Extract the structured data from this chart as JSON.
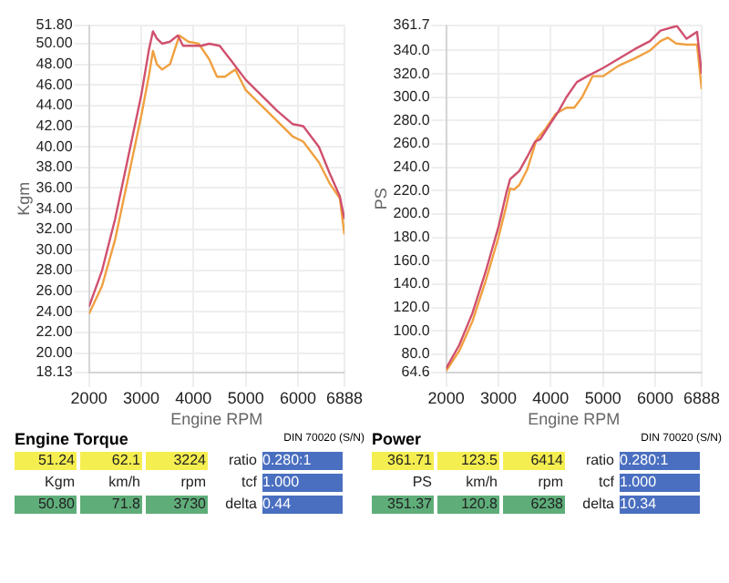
{
  "chart_data": [
    {
      "type": "line",
      "title": "Engine Torque",
      "xlabel": "Engine RPM",
      "ylabel": "Kgm",
      "xlim": [
        2000,
        6888
      ],
      "xticks": [
        2000,
        3000,
        4000,
        5000,
        6000,
        6888
      ],
      "ylim": [
        18.13,
        51.8
      ],
      "yticks": [
        {
          "value": 18.13,
          "label": "18.13"
        },
        {
          "value": 20,
          "label": "20.00"
        },
        {
          "value": 22,
          "label": "22.00"
        },
        {
          "value": 24,
          "label": "24.00"
        },
        {
          "value": 26,
          "label": "26.00"
        },
        {
          "value": 28,
          "label": "28.00"
        },
        {
          "value": 30,
          "label": "30.00"
        },
        {
          "value": 32,
          "label": "32.00"
        },
        {
          "value": 34,
          "label": "34.00"
        },
        {
          "value": 36,
          "label": "36.00"
        },
        {
          "value": 38,
          "label": "38.00"
        },
        {
          "value": 40,
          "label": "40.00"
        },
        {
          "value": 42,
          "label": "42.00"
        },
        {
          "value": 44,
          "label": "44.00"
        },
        {
          "value": 46,
          "label": "46.00"
        },
        {
          "value": 48,
          "label": "48.00"
        },
        {
          "value": 50,
          "label": "50.00"
        },
        {
          "value": 51.8,
          "label": "51.80"
        }
      ],
      "grid": true,
      "legend": false,
      "marker": "none",
      "line_style": "solid",
      "series": [
        {
          "color": "#d0506e",
          "x": [
            2000,
            2250,
            2500,
            2750,
            3000,
            3150,
            3224,
            3300,
            3400,
            3550,
            3700,
            3800,
            4000,
            4150,
            4300,
            4500,
            4700,
            5000,
            5300,
            5600,
            5900,
            6100,
            6400,
            6600,
            6800,
            6888
          ],
          "values": [
            24.5,
            28,
            33,
            39,
            45,
            49.5,
            51.2,
            50.5,
            50,
            50.2,
            50.8,
            49.8,
            49.8,
            49.8,
            50,
            49.8,
            48.5,
            46.5,
            45,
            43.5,
            42.2,
            42,
            40,
            37.5,
            35.2,
            33
          ]
        },
        {
          "color": "#f0a040",
          "x": [
            2000,
            2250,
            2500,
            2750,
            3000,
            3150,
            3224,
            3300,
            3400,
            3550,
            3730,
            3900,
            4100,
            4300,
            4450,
            4600,
            4800,
            5000,
            5300,
            5600,
            5900,
            6100,
            6400,
            6600,
            6800,
            6888
          ],
          "values": [
            23.8,
            26.5,
            31,
            37,
            43,
            47,
            49.3,
            48,
            47.5,
            48,
            50.8,
            50.2,
            50,
            48.5,
            46.8,
            46.8,
            47.5,
            45.5,
            44,
            42.5,
            41,
            40.5,
            38.5,
            36.5,
            35,
            31.5
          ]
        }
      ],
      "annotations": [
        "DIN 70020 (S/N)",
        "51.24",
        "62.1",
        "3224",
        "ratio",
        "0.280:1",
        "Kgm",
        "km/h",
        "rpm",
        "tcf",
        "1.000",
        "50.80",
        "71.8",
        "3730",
        "delta",
        "0.44"
      ]
    },
    {
      "type": "line",
      "title": "Power",
      "xlabel": "Engine RPM",
      "ylabel": "PS",
      "xlim": [
        2000,
        6888
      ],
      "xticks": [
        2000,
        3000,
        4000,
        5000,
        6000,
        6888
      ],
      "ylim": [
        64.6,
        361.7
      ],
      "yticks": [
        {
          "value": 64.6,
          "label": "64.6"
        },
        {
          "value": 80,
          "label": "80.0"
        },
        {
          "value": 100,
          "label": "100.0"
        },
        {
          "value": 120,
          "label": "120.0"
        },
        {
          "value": 140,
          "label": "140.0"
        },
        {
          "value": 160,
          "label": "160.0"
        },
        {
          "value": 180,
          "label": "180.0"
        },
        {
          "value": 200,
          "label": "200.0"
        },
        {
          "value": 220,
          "label": "220.0"
        },
        {
          "value": 240,
          "label": "240.0"
        },
        {
          "value": 260,
          "label": "260.0"
        },
        {
          "value": 280,
          "label": "280.0"
        },
        {
          "value": 300,
          "label": "300.0"
        },
        {
          "value": 320,
          "label": "320.0"
        },
        {
          "value": 340,
          "label": "340.0"
        },
        {
          "value": 361.7,
          "label": "361.7"
        }
      ],
      "grid": true,
      "legend": false,
      "marker": "none",
      "line_style": "solid",
      "series": [
        {
          "color": "#d0506e",
          "x": [
            2000,
            2250,
            2500,
            2750,
            3000,
            3150,
            3224,
            3300,
            3400,
            3550,
            3700,
            3800,
            4000,
            4150,
            4300,
            4500,
            4700,
            5000,
            5300,
            5600,
            5900,
            6100,
            6414,
            6600,
            6800,
            6888
          ],
          "values": [
            68,
            88,
            115,
            150,
            189,
            218,
            230,
            233,
            237,
            249,
            262,
            264,
            278,
            288,
            300,
            313,
            318,
            325,
            333,
            341,
            348,
            357,
            361,
            350,
            356,
            320
          ]
        },
        {
          "color": "#f0a040",
          "x": [
            2000,
            2250,
            2500,
            2750,
            3000,
            3150,
            3224,
            3300,
            3400,
            3550,
            3730,
            3900,
            4100,
            4300,
            4450,
            4600,
            4800,
            5000,
            5300,
            5600,
            5900,
            6100,
            6238,
            6400,
            6600,
            6800,
            6888
          ],
          "values": [
            66,
            83,
            108,
            142,
            180,
            207,
            222,
            221,
            225,
            238,
            264,
            273,
            286,
            291,
            291,
            300,
            318,
            318,
            327,
            333,
            340,
            348,
            351,
            346,
            345,
            345,
            307
          ]
        }
      ],
      "annotations": [
        "DIN 70020 (S/N)",
        "361.71",
        "123.5",
        "6414",
        "ratio",
        "0.280:1",
        "PS",
        "km/h",
        "rpm",
        "tcf",
        "1.000",
        "351.37",
        "120.8",
        "6238",
        "delta",
        "10.34"
      ]
    }
  ]
}
